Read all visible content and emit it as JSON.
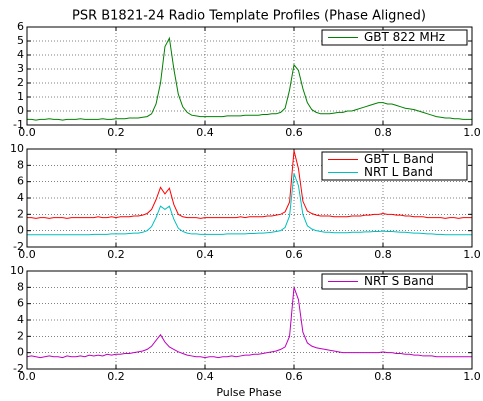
{
  "chart_data": [
    {
      "type": "line",
      "title": "PSR B1821-24 Radio Template Profiles (Phase Aligned)",
      "x": [
        0,
        0.01,
        0.02,
        0.03,
        0.04,
        0.05,
        0.06,
        0.07,
        0.08,
        0.09,
        0.1,
        0.11,
        0.12,
        0.13,
        0.14,
        0.15,
        0.16,
        0.17,
        0.18,
        0.19,
        0.2,
        0.21,
        0.22,
        0.23,
        0.24,
        0.25,
        0.26,
        0.27,
        0.28,
        0.29,
        0.3,
        0.31,
        0.32,
        0.33,
        0.34,
        0.35,
        0.36,
        0.37,
        0.38,
        0.39,
        0.4,
        0.41,
        0.42,
        0.43,
        0.44,
        0.45,
        0.46,
        0.47,
        0.48,
        0.49,
        0.5,
        0.51,
        0.52,
        0.53,
        0.54,
        0.55,
        0.56,
        0.57,
        0.58,
        0.59,
        0.6,
        0.61,
        0.62,
        0.63,
        0.64,
        0.65,
        0.66,
        0.67,
        0.68,
        0.69,
        0.7,
        0.71,
        0.72,
        0.73,
        0.74,
        0.75,
        0.76,
        0.77,
        0.78,
        0.79,
        0.8,
        0.81,
        0.82,
        0.83,
        0.84,
        0.85,
        0.86,
        0.87,
        0.88,
        0.89,
        0.9,
        0.91,
        0.92,
        0.93,
        0.94,
        0.95,
        0.96,
        0.97,
        0.98,
        0.99,
        1
      ],
      "series": [
        {
          "name": "GBT 822 MHz",
          "color": "#008000",
          "values": [
            -0.6,
            -0.6,
            -0.65,
            -0.6,
            -0.6,
            -0.55,
            -0.6,
            -0.6,
            -0.65,
            -0.6,
            -0.6,
            -0.6,
            -0.55,
            -0.6,
            -0.6,
            -0.6,
            -0.6,
            -0.55,
            -0.6,
            -0.6,
            -0.55,
            -0.55,
            -0.55,
            -0.5,
            -0.5,
            -0.5,
            -0.45,
            -0.4,
            -0.2,
            0.5,
            2.0,
            4.6,
            5.2,
            3.0,
            1.2,
            0.3,
            -0.1,
            -0.3,
            -0.35,
            -0.4,
            -0.4,
            -0.4,
            -0.4,
            -0.4,
            -0.4,
            -0.35,
            -0.35,
            -0.35,
            -0.35,
            -0.3,
            -0.3,
            -0.3,
            -0.3,
            -0.25,
            -0.25,
            -0.2,
            -0.2,
            -0.1,
            0.2,
            1.5,
            3.3,
            2.9,
            1.6,
            0.6,
            0.1,
            -0.1,
            -0.2,
            -0.2,
            -0.2,
            -0.15,
            -0.1,
            -0.1,
            0,
            0,
            0.1,
            0.2,
            0.3,
            0.4,
            0.5,
            0.6,
            0.6,
            0.5,
            0.5,
            0.4,
            0.3,
            0.2,
            0.15,
            0.1,
            0,
            -0.1,
            -0.2,
            -0.3,
            -0.4,
            -0.45,
            -0.5,
            -0.5,
            -0.55,
            -0.55,
            -0.6,
            -0.6,
            -0.6
          ]
        }
      ],
      "xlim": [
        0,
        1
      ],
      "xticks": [
        {
          "value": 0,
          "label": "0.0"
        },
        0.2,
        0.4,
        0.6,
        0.8,
        {
          "value": 1,
          "label": "1.0"
        }
      ],
      "ylim": [
        -1,
        6
      ],
      "yticks": [
        -1,
        0,
        1,
        2,
        3,
        4,
        5,
        6
      ],
      "grid": true,
      "legend": "upper right"
    },
    {
      "type": "line",
      "x": [
        0,
        0.01,
        0.02,
        0.03,
        0.04,
        0.05,
        0.06,
        0.07,
        0.08,
        0.09,
        0.1,
        0.11,
        0.12,
        0.13,
        0.14,
        0.15,
        0.16,
        0.17,
        0.18,
        0.19,
        0.2,
        0.21,
        0.22,
        0.23,
        0.24,
        0.25,
        0.26,
        0.27,
        0.28,
        0.29,
        0.3,
        0.31,
        0.32,
        0.33,
        0.34,
        0.35,
        0.36,
        0.37,
        0.38,
        0.39,
        0.4,
        0.41,
        0.42,
        0.43,
        0.44,
        0.45,
        0.46,
        0.47,
        0.48,
        0.49,
        0.5,
        0.51,
        0.52,
        0.53,
        0.54,
        0.55,
        0.56,
        0.57,
        0.58,
        0.59,
        0.6,
        0.61,
        0.62,
        0.63,
        0.64,
        0.65,
        0.66,
        0.67,
        0.68,
        0.69,
        0.7,
        0.71,
        0.72,
        0.73,
        0.74,
        0.75,
        0.76,
        0.77,
        0.78,
        0.79,
        0.8,
        0.81,
        0.82,
        0.83,
        0.84,
        0.85,
        0.86,
        0.87,
        0.88,
        0.89,
        0.9,
        0.91,
        0.92,
        0.93,
        0.94,
        0.95,
        0.96,
        0.97,
        0.98,
        0.99,
        1
      ],
      "series": [
        {
          "name": "GBT L Band",
          "color": "#ff0000",
          "values": [
            1.6,
            1.6,
            1.5,
            1.6,
            1.6,
            1.5,
            1.6,
            1.6,
            1.6,
            1.5,
            1.6,
            1.6,
            1.6,
            1.6,
            1.6,
            1.6,
            1.7,
            1.6,
            1.6,
            1.7,
            1.6,
            1.7,
            1.7,
            1.7,
            1.8,
            1.8,
            1.9,
            2.1,
            2.6,
            3.8,
            5.3,
            4.5,
            5.2,
            3.2,
            2.0,
            1.7,
            1.6,
            1.6,
            1.6,
            1.5,
            1.6,
            1.6,
            1.6,
            1.6,
            1.6,
            1.6,
            1.6,
            1.6,
            1.7,
            1.6,
            1.7,
            1.7,
            1.7,
            1.7,
            1.8,
            1.8,
            1.9,
            2.0,
            2.3,
            3.5,
            9.8,
            7.6,
            3.6,
            2.4,
            2.1,
            1.9,
            1.8,
            1.8,
            1.8,
            1.7,
            1.7,
            1.7,
            1.7,
            1.8,
            1.8,
            1.8,
            1.9,
            1.9,
            2.0,
            2.0,
            2.1,
            2.0,
            2.0,
            1.9,
            1.9,
            1.8,
            1.8,
            1.7,
            1.7,
            1.7,
            1.6,
            1.6,
            1.6,
            1.6,
            1.5,
            1.6,
            1.6,
            1.5,
            1.6,
            1.6,
            1.6
          ]
        },
        {
          "name": "NRT L Band",
          "color": "#00bfbf",
          "values": [
            -0.5,
            -0.5,
            -0.5,
            -0.5,
            -0.5,
            -0.5,
            -0.5,
            -0.5,
            -0.5,
            -0.5,
            -0.5,
            -0.5,
            -0.5,
            -0.5,
            -0.5,
            -0.45,
            -0.45,
            -0.45,
            -0.45,
            -0.4,
            -0.4,
            -0.4,
            -0.4,
            -0.35,
            -0.3,
            -0.3,
            -0.2,
            0,
            0.5,
            1.6,
            3.0,
            2.6,
            3.0,
            1.4,
            0.3,
            -0.1,
            -0.3,
            -0.4,
            -0.4,
            -0.45,
            -0.45,
            -0.45,
            -0.45,
            -0.45,
            -0.45,
            -0.4,
            -0.4,
            -0.4,
            -0.4,
            -0.4,
            -0.35,
            -0.35,
            -0.3,
            -0.3,
            -0.25,
            -0.2,
            -0.1,
            0.0,
            0.4,
            1.8,
            7.0,
            5.5,
            2.0,
            0.6,
            0.2,
            0.0,
            -0.1,
            -0.2,
            -0.2,
            -0.25,
            -0.25,
            -0.25,
            -0.25,
            -0.2,
            -0.2,
            -0.2,
            -0.15,
            -0.15,
            -0.1,
            -0.1,
            -0.05,
            -0.1,
            -0.1,
            -0.15,
            -0.2,
            -0.2,
            -0.25,
            -0.3,
            -0.3,
            -0.35,
            -0.4,
            -0.4,
            -0.45,
            -0.45,
            -0.5,
            -0.5,
            -0.5,
            -0.5,
            -0.5,
            -0.5,
            -0.5
          ]
        }
      ],
      "xlim": [
        0,
        1
      ],
      "xticks": [
        {
          "value": 0,
          "label": "0.0"
        },
        0.2,
        0.4,
        0.6,
        0.8,
        {
          "value": 1,
          "label": "1.0"
        }
      ],
      "ylim": [
        -2,
        10
      ],
      "yticks": [
        -2,
        0,
        2,
        4,
        6,
        8,
        10
      ],
      "grid": true,
      "legend": "upper right"
    },
    {
      "type": "line",
      "xlabel": "Pulse Phase",
      "x": [
        0,
        0.01,
        0.02,
        0.03,
        0.04,
        0.05,
        0.06,
        0.07,
        0.08,
        0.09,
        0.1,
        0.11,
        0.12,
        0.13,
        0.14,
        0.15,
        0.16,
        0.17,
        0.18,
        0.19,
        0.2,
        0.21,
        0.22,
        0.23,
        0.24,
        0.25,
        0.26,
        0.27,
        0.28,
        0.29,
        0.3,
        0.31,
        0.32,
        0.33,
        0.34,
        0.35,
        0.36,
        0.37,
        0.38,
        0.39,
        0.4,
        0.41,
        0.42,
        0.43,
        0.44,
        0.45,
        0.46,
        0.47,
        0.48,
        0.49,
        0.5,
        0.51,
        0.52,
        0.53,
        0.54,
        0.55,
        0.56,
        0.57,
        0.58,
        0.59,
        0.6,
        0.61,
        0.62,
        0.63,
        0.64,
        0.65,
        0.66,
        0.67,
        0.68,
        0.69,
        0.7,
        0.71,
        0.72,
        0.73,
        0.74,
        0.75,
        0.76,
        0.77,
        0.78,
        0.79,
        0.8,
        0.81,
        0.82,
        0.83,
        0.84,
        0.85,
        0.86,
        0.87,
        0.88,
        0.89,
        0.9,
        0.91,
        0.92,
        0.93,
        0.94,
        0.95,
        0.96,
        0.97,
        0.98,
        0.99,
        1
      ],
      "series": [
        {
          "name": "NRT S Band",
          "color": "#bf00bf",
          "values": [
            -0.5,
            -0.4,
            -0.5,
            -0.6,
            -0.5,
            -0.4,
            -0.5,
            -0.5,
            -0.6,
            -0.4,
            -0.5,
            -0.5,
            -0.4,
            -0.5,
            -0.3,
            -0.4,
            -0.3,
            -0.4,
            -0.2,
            -0.3,
            -0.2,
            -0.2,
            -0.1,
            -0.1,
            0,
            0.1,
            0.2,
            0.4,
            0.8,
            1.5,
            2.2,
            1.3,
            0.7,
            0.4,
            0.1,
            -0.1,
            -0.3,
            -0.4,
            -0.5,
            -0.5,
            -0.6,
            -0.5,
            -0.5,
            -0.6,
            -0.5,
            -0.5,
            -0.4,
            -0.5,
            -0.4,
            -0.3,
            -0.3,
            -0.2,
            -0.2,
            -0.1,
            0,
            0.1,
            0.2,
            0.4,
            0.7,
            2.0,
            8.0,
            6.5,
            2.5,
            1.2,
            0.8,
            0.6,
            0.5,
            0.4,
            0.3,
            0.2,
            0.1,
            0,
            0,
            0,
            0,
            0,
            0,
            0,
            0,
            0,
            0.1,
            0,
            0,
            -0.1,
            -0.1,
            -0.2,
            -0.2,
            -0.3,
            -0.3,
            -0.4,
            -0.4,
            -0.4,
            -0.5,
            -0.5,
            -0.5,
            -0.5,
            -0.5,
            -0.5,
            -0.5,
            -0.5,
            -0.5
          ]
        }
      ],
      "xlim": [
        0,
        1
      ],
      "xticks": [
        {
          "value": 0,
          "label": "0.0"
        },
        0.2,
        0.4,
        0.6,
        0.8,
        {
          "value": 1,
          "label": "1.0"
        }
      ],
      "ylim": [
        -2,
        10
      ],
      "yticks": [
        -2,
        0,
        2,
        4,
        6,
        8,
        10
      ],
      "grid": true,
      "legend": "upper right"
    }
  ]
}
